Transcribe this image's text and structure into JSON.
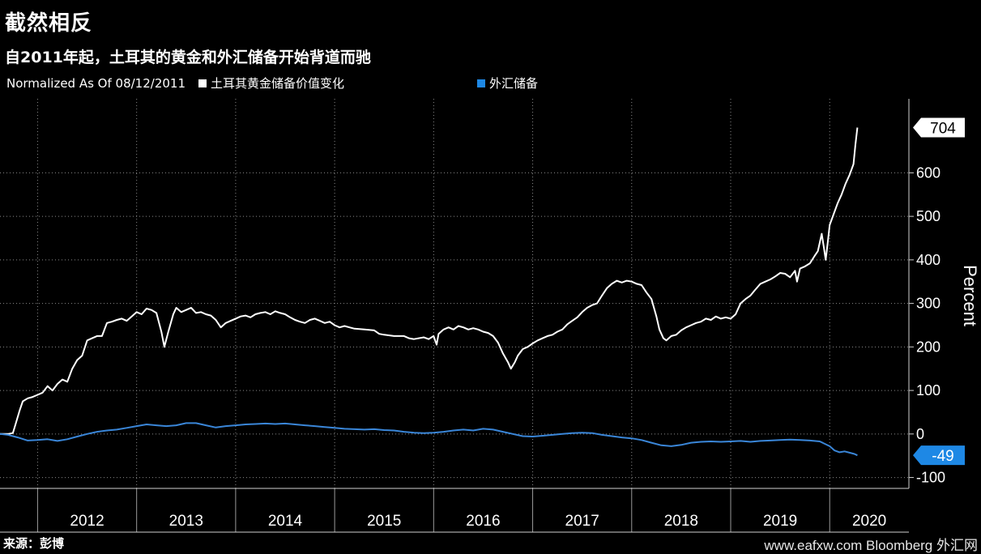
{
  "header": {
    "title": "截然相反",
    "subtitle": "自2011年起，土耳其的黄金和外汇储备开始背道而驰"
  },
  "legend": {
    "note": "Normalized As Of 08/12/2011",
    "items": [
      {
        "label": "土耳其黄金储备价值变化",
        "color": "#ffffff"
      },
      {
        "label": "外汇储备",
        "color": "#1e88e5"
      }
    ]
  },
  "footer": {
    "source": "来源：彭博",
    "watermark": "www.eafxw.com  Bloomberg 外汇网"
  },
  "chart_data": {
    "type": "line",
    "ylabel": "Percent",
    "ylim": [
      -125,
      770
    ],
    "yticks": [
      -100,
      0,
      100,
      200,
      300,
      400,
      500,
      600
    ],
    "xlim": [
      2011.62,
      2020.8
    ],
    "xticks": [
      "2012",
      "2013",
      "2014",
      "2015",
      "2016",
      "2017",
      "2018",
      "2019",
      "2020"
    ],
    "grid": true,
    "series": [
      {
        "name": "土耳其黄金储备价值变化",
        "color": "#ffffff",
        "last_label": "704",
        "points": [
          [
            2011.62,
            0
          ],
          [
            2011.7,
            0
          ],
          [
            2011.75,
            2
          ],
          [
            2011.78,
            25
          ],
          [
            2011.82,
            55
          ],
          [
            2011.85,
            75
          ],
          [
            2011.9,
            82
          ],
          [
            2011.95,
            85
          ],
          [
            2012.0,
            90
          ],
          [
            2012.05,
            95
          ],
          [
            2012.1,
            110
          ],
          [
            2012.15,
            100
          ],
          [
            2012.2,
            115
          ],
          [
            2012.25,
            125
          ],
          [
            2012.3,
            120
          ],
          [
            2012.35,
            150
          ],
          [
            2012.4,
            170
          ],
          [
            2012.45,
            180
          ],
          [
            2012.5,
            215
          ],
          [
            2012.55,
            220
          ],
          [
            2012.6,
            225
          ],
          [
            2012.65,
            225
          ],
          [
            2012.7,
            255
          ],
          [
            2012.75,
            258
          ],
          [
            2012.8,
            262
          ],
          [
            2012.85,
            265
          ],
          [
            2012.9,
            260
          ],
          [
            2012.95,
            270
          ],
          [
            2013.0,
            280
          ],
          [
            2013.05,
            275
          ],
          [
            2013.1,
            288
          ],
          [
            2013.15,
            285
          ],
          [
            2013.2,
            278
          ],
          [
            2013.25,
            235
          ],
          [
            2013.28,
            200
          ],
          [
            2013.32,
            235
          ],
          [
            2013.37,
            275
          ],
          [
            2013.4,
            290
          ],
          [
            2013.45,
            280
          ],
          [
            2013.5,
            285
          ],
          [
            2013.55,
            290
          ],
          [
            2013.6,
            278
          ],
          [
            2013.65,
            280
          ],
          [
            2013.7,
            275
          ],
          [
            2013.75,
            272
          ],
          [
            2013.8,
            262
          ],
          [
            2013.85,
            245
          ],
          [
            2013.9,
            255
          ],
          [
            2013.95,
            260
          ],
          [
            2014.0,
            265
          ],
          [
            2014.05,
            270
          ],
          [
            2014.1,
            272
          ],
          [
            2014.15,
            268
          ],
          [
            2014.2,
            275
          ],
          [
            2014.25,
            278
          ],
          [
            2014.3,
            280
          ],
          [
            2014.35,
            275
          ],
          [
            2014.4,
            282
          ],
          [
            2014.45,
            278
          ],
          [
            2014.5,
            275
          ],
          [
            2014.55,
            268
          ],
          [
            2014.6,
            262
          ],
          [
            2014.65,
            258
          ],
          [
            2014.7,
            255
          ],
          [
            2014.75,
            262
          ],
          [
            2014.8,
            265
          ],
          [
            2014.85,
            260
          ],
          [
            2014.9,
            255
          ],
          [
            2014.95,
            258
          ],
          [
            2015.0,
            250
          ],
          [
            2015.05,
            245
          ],
          [
            2015.1,
            248
          ],
          [
            2015.15,
            245
          ],
          [
            2015.2,
            242
          ],
          [
            2015.3,
            240
          ],
          [
            2015.4,
            238
          ],
          [
            2015.45,
            230
          ],
          [
            2015.5,
            228
          ],
          [
            2015.6,
            225
          ],
          [
            2015.7,
            225
          ],
          [
            2015.75,
            220
          ],
          [
            2015.8,
            218
          ],
          [
            2015.9,
            222
          ],
          [
            2015.95,
            218
          ],
          [
            2016.0,
            225
          ],
          [
            2016.03,
            205
          ],
          [
            2016.05,
            230
          ],
          [
            2016.1,
            240
          ],
          [
            2016.15,
            245
          ],
          [
            2016.2,
            240
          ],
          [
            2016.25,
            248
          ],
          [
            2016.3,
            245
          ],
          [
            2016.35,
            240
          ],
          [
            2016.4,
            243
          ],
          [
            2016.45,
            240
          ],
          [
            2016.5,
            235
          ],
          [
            2016.55,
            232
          ],
          [
            2016.6,
            225
          ],
          [
            2016.65,
            210
          ],
          [
            2016.7,
            185
          ],
          [
            2016.75,
            165
          ],
          [
            2016.78,
            150
          ],
          [
            2016.82,
            165
          ],
          [
            2016.85,
            180
          ],
          [
            2016.9,
            195
          ],
          [
            2016.95,
            200
          ],
          [
            2017.0,
            208
          ],
          [
            2017.05,
            215
          ],
          [
            2017.1,
            220
          ],
          [
            2017.15,
            225
          ],
          [
            2017.2,
            228
          ],
          [
            2017.25,
            235
          ],
          [
            2017.3,
            240
          ],
          [
            2017.35,
            252
          ],
          [
            2017.4,
            260
          ],
          [
            2017.45,
            268
          ],
          [
            2017.5,
            280
          ],
          [
            2017.55,
            290
          ],
          [
            2017.6,
            296
          ],
          [
            2017.65,
            300
          ],
          [
            2017.7,
            318
          ],
          [
            2017.75,
            335
          ],
          [
            2017.8,
            345
          ],
          [
            2017.85,
            352
          ],
          [
            2017.9,
            348
          ],
          [
            2017.95,
            352
          ],
          [
            2018.0,
            350
          ],
          [
            2018.05,
            345
          ],
          [
            2018.1,
            342
          ],
          [
            2018.15,
            325
          ],
          [
            2018.2,
            310
          ],
          [
            2018.25,
            270
          ],
          [
            2018.28,
            240
          ],
          [
            2018.32,
            220
          ],
          [
            2018.35,
            215
          ],
          [
            2018.4,
            225
          ],
          [
            2018.45,
            228
          ],
          [
            2018.5,
            238
          ],
          [
            2018.55,
            245
          ],
          [
            2018.6,
            250
          ],
          [
            2018.65,
            255
          ],
          [
            2018.7,
            258
          ],
          [
            2018.75,
            265
          ],
          [
            2018.8,
            262
          ],
          [
            2018.85,
            270
          ],
          [
            2018.9,
            265
          ],
          [
            2018.95,
            268
          ],
          [
            2019.0,
            265
          ],
          [
            2019.05,
            275
          ],
          [
            2019.1,
            300
          ],
          [
            2019.15,
            310
          ],
          [
            2019.2,
            318
          ],
          [
            2019.25,
            332
          ],
          [
            2019.3,
            345
          ],
          [
            2019.35,
            350
          ],
          [
            2019.4,
            355
          ],
          [
            2019.45,
            362
          ],
          [
            2019.5,
            370
          ],
          [
            2019.55,
            368
          ],
          [
            2019.6,
            360
          ],
          [
            2019.65,
            375
          ],
          [
            2019.67,
            350
          ],
          [
            2019.7,
            380
          ],
          [
            2019.75,
            385
          ],
          [
            2019.8,
            392
          ],
          [
            2019.85,
            410
          ],
          [
            2019.88,
            420
          ],
          [
            2019.9,
            440
          ],
          [
            2019.92,
            460
          ],
          [
            2019.94,
            430
          ],
          [
            2019.96,
            400
          ],
          [
            2019.98,
            440
          ],
          [
            2020.0,
            480
          ],
          [
            2020.04,
            505
          ],
          [
            2020.08,
            530
          ],
          [
            2020.12,
            550
          ],
          [
            2020.16,
            575
          ],
          [
            2020.2,
            595
          ],
          [
            2020.24,
            620
          ],
          [
            2020.26,
            665
          ],
          [
            2020.28,
            704
          ]
        ]
      },
      {
        "name": "外汇储备",
        "color": "#3a86d8",
        "last_label": "-49",
        "points": [
          [
            2011.62,
            0
          ],
          [
            2011.7,
            -2
          ],
          [
            2011.8,
            -8
          ],
          [
            2011.9,
            -15
          ],
          [
            2012.0,
            -14
          ],
          [
            2012.1,
            -12
          ],
          [
            2012.2,
            -16
          ],
          [
            2012.3,
            -12
          ],
          [
            2012.4,
            -6
          ],
          [
            2012.5,
            0
          ],
          [
            2012.6,
            5
          ],
          [
            2012.7,
            8
          ],
          [
            2012.8,
            10
          ],
          [
            2012.9,
            14
          ],
          [
            2013.0,
            18
          ],
          [
            2013.1,
            22
          ],
          [
            2013.2,
            20
          ],
          [
            2013.3,
            18
          ],
          [
            2013.4,
            20
          ],
          [
            2013.5,
            25
          ],
          [
            2013.6,
            25
          ],
          [
            2013.7,
            20
          ],
          [
            2013.8,
            15
          ],
          [
            2013.9,
            18
          ],
          [
            2014.0,
            20
          ],
          [
            2014.1,
            22
          ],
          [
            2014.2,
            23
          ],
          [
            2014.3,
            24
          ],
          [
            2014.4,
            23
          ],
          [
            2014.5,
            24
          ],
          [
            2014.6,
            22
          ],
          [
            2014.7,
            20
          ],
          [
            2014.8,
            18
          ],
          [
            2014.9,
            16
          ],
          [
            2015.0,
            14
          ],
          [
            2015.1,
            12
          ],
          [
            2015.2,
            11
          ],
          [
            2015.3,
            10
          ],
          [
            2015.4,
            11
          ],
          [
            2015.5,
            9
          ],
          [
            2015.6,
            8
          ],
          [
            2015.7,
            5
          ],
          [
            2015.8,
            3
          ],
          [
            2015.9,
            2
          ],
          [
            2016.0,
            3
          ],
          [
            2016.1,
            5
          ],
          [
            2016.2,
            8
          ],
          [
            2016.3,
            10
          ],
          [
            2016.4,
            8
          ],
          [
            2016.5,
            12
          ],
          [
            2016.6,
            10
          ],
          [
            2016.7,
            5
          ],
          [
            2016.8,
            0
          ],
          [
            2016.9,
            -5
          ],
          [
            2017.0,
            -6
          ],
          [
            2017.1,
            -4
          ],
          [
            2017.2,
            -2
          ],
          [
            2017.3,
            0
          ],
          [
            2017.4,
            2
          ],
          [
            2017.5,
            3
          ],
          [
            2017.6,
            2
          ],
          [
            2017.7,
            -2
          ],
          [
            2017.8,
            -5
          ],
          [
            2017.9,
            -8
          ],
          [
            2018.0,
            -10
          ],
          [
            2018.1,
            -14
          ],
          [
            2018.2,
            -20
          ],
          [
            2018.3,
            -26
          ],
          [
            2018.4,
            -28
          ],
          [
            2018.5,
            -25
          ],
          [
            2018.6,
            -20
          ],
          [
            2018.7,
            -18
          ],
          [
            2018.8,
            -17
          ],
          [
            2018.9,
            -18
          ],
          [
            2019.0,
            -17
          ],
          [
            2019.1,
            -16
          ],
          [
            2019.2,
            -18
          ],
          [
            2019.3,
            -16
          ],
          [
            2019.4,
            -15
          ],
          [
            2019.5,
            -14
          ],
          [
            2019.6,
            -13
          ],
          [
            2019.7,
            -14
          ],
          [
            2019.8,
            -15
          ],
          [
            2019.9,
            -17
          ],
          [
            2020.0,
            -28
          ],
          [
            2020.05,
            -38
          ],
          [
            2020.1,
            -42
          ],
          [
            2020.15,
            -40
          ],
          [
            2020.2,
            -43
          ],
          [
            2020.25,
            -46
          ],
          [
            2020.28,
            -49
          ]
        ]
      }
    ]
  }
}
